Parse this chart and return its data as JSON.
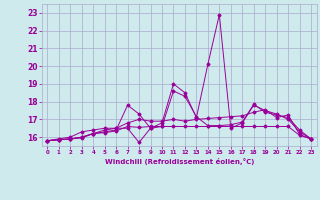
{
  "xlabel": "Windchill (Refroidissement éolien,°C)",
  "background_color": "#ceeaec",
  "grid_color": "#aaaacc",
  "line_color": "#990099",
  "x_ticks": [
    0,
    1,
    2,
    3,
    4,
    5,
    6,
    7,
    8,
    9,
    10,
    11,
    12,
    13,
    14,
    15,
    16,
    17,
    18,
    19,
    20,
    21,
    22,
    23
  ],
  "ylim": [
    15.5,
    23.5
  ],
  "xlim": [
    -0.5,
    23.5
  ],
  "yticks": [
    16,
    17,
    18,
    19,
    20,
    21,
    22,
    23
  ],
  "series": [
    [
      15.8,
      15.85,
      15.9,
      15.95,
      16.2,
      16.25,
      16.35,
      16.6,
      16.55,
      16.6,
      16.6,
      16.6,
      16.6,
      16.6,
      16.6,
      16.6,
      16.6,
      16.6,
      16.6,
      16.6,
      16.6,
      16.6,
      16.1,
      15.9
    ],
    [
      15.8,
      15.9,
      16.0,
      16.3,
      16.4,
      16.5,
      16.5,
      16.5,
      15.7,
      16.5,
      16.8,
      19.0,
      18.5,
      17.1,
      20.1,
      22.9,
      16.5,
      16.8,
      17.8,
      17.5,
      17.3,
      17.0,
      16.3,
      15.9
    ],
    [
      15.8,
      15.85,
      15.9,
      16.0,
      16.2,
      16.3,
      16.4,
      17.8,
      17.3,
      16.5,
      16.6,
      18.6,
      18.3,
      17.15,
      16.65,
      16.65,
      16.7,
      16.85,
      17.85,
      17.4,
      17.25,
      17.1,
      16.4,
      15.9
    ],
    [
      15.8,
      15.85,
      15.9,
      16.0,
      16.2,
      16.4,
      16.5,
      16.8,
      17.0,
      16.9,
      16.9,
      17.0,
      16.9,
      17.0,
      17.05,
      17.1,
      17.15,
      17.2,
      17.4,
      17.55,
      17.1,
      17.25,
      16.15,
      15.9
    ]
  ]
}
